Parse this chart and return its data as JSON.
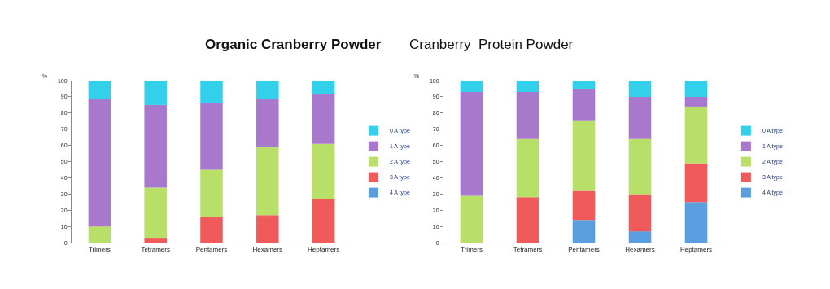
{
  "chart_data": [
    {
      "type": "bar",
      "stacked": true,
      "title": "Organic Cranberry Powder",
      "ylabel": "%",
      "categories": [
        "Trimers",
        "Tetramers",
        "Pentamers",
        "Hexamers",
        "Heptamers"
      ],
      "ylim": [
        0,
        100
      ],
      "yticks": [
        0,
        10,
        20,
        30,
        40,
        50,
        60,
        70,
        80,
        90,
        100
      ],
      "grid": false,
      "legend": "right",
      "series": [
        {
          "name": "4 A type",
          "color": "#5b9ee0",
          "values": [
            0,
            0,
            0,
            0,
            0
          ]
        },
        {
          "name": "3 A type",
          "color": "#f05a5a",
          "values": [
            0,
            3,
            16,
            17,
            27
          ]
        },
        {
          "name": "2 A type",
          "color": "#b8e068",
          "values": [
            10,
            31,
            29,
            42,
            34
          ]
        },
        {
          "name": "1 A type",
          "color": "#a878cc",
          "values": [
            79,
            51,
            41,
            30,
            31
          ]
        },
        {
          "name": "0 A type",
          "color": "#33d0ec",
          "values": [
            11,
            15,
            14,
            11,
            8
          ]
        }
      ]
    },
    {
      "type": "bar",
      "stacked": true,
      "title": "Cranberry  Protein Powder",
      "ylabel": "%",
      "categories": [
        "Trimers",
        "Tetramers",
        "Pentamers",
        "Hexamers",
        "Heptamers"
      ],
      "ylim": [
        0,
        100
      ],
      "yticks": [
        0,
        10,
        20,
        30,
        40,
        50,
        60,
        70,
        80,
        90,
        100
      ],
      "grid": false,
      "legend": "right",
      "series": [
        {
          "name": "4 A type",
          "color": "#5b9ee0",
          "values": [
            0,
            0,
            14,
            7,
            25
          ]
        },
        {
          "name": "3 A type",
          "color": "#f05a5a",
          "values": [
            0,
            28,
            18,
            23,
            24
          ]
        },
        {
          "name": "2 A type",
          "color": "#b8e068",
          "values": [
            29,
            36,
            43,
            34,
            35
          ]
        },
        {
          "name": "1 A type",
          "color": "#a878cc",
          "values": [
            64,
            29,
            20,
            26,
            6
          ]
        },
        {
          "name": "0 A type",
          "color": "#33d0ec",
          "values": [
            7,
            7,
            5,
            10,
            10
          ]
        }
      ]
    }
  ]
}
